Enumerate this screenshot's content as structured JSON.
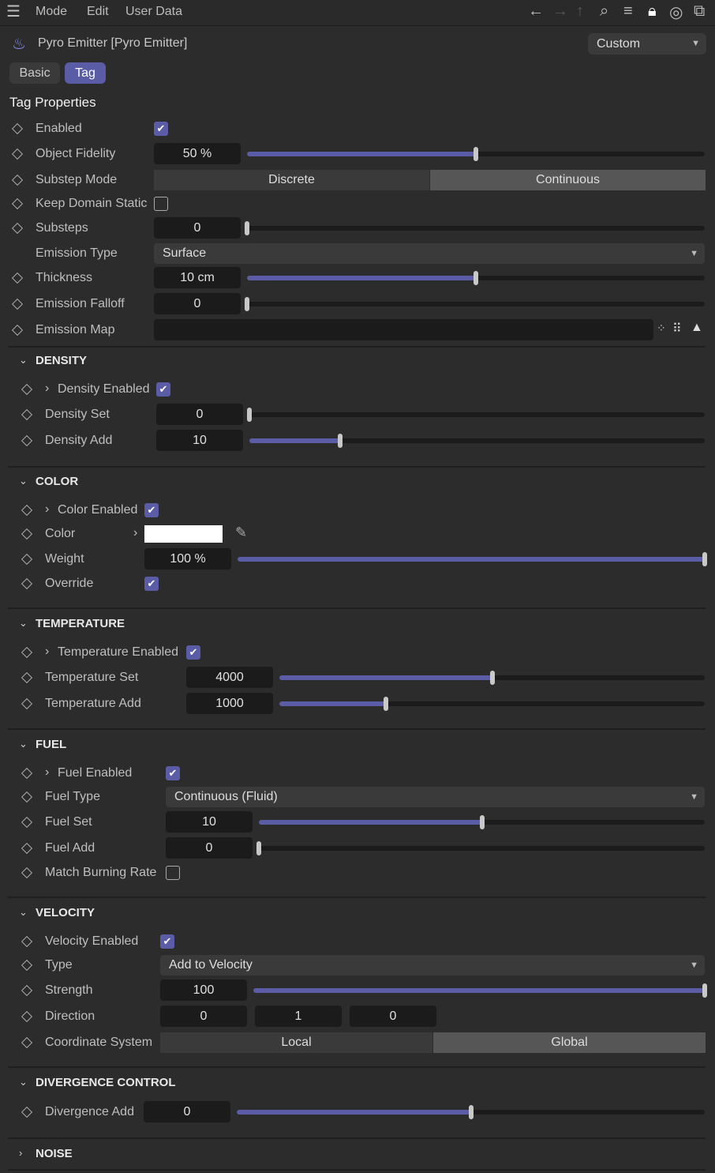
{
  "menu": {
    "items": [
      "Mode",
      "Edit",
      "User Data"
    ],
    "icons": [
      "arrow-left-icon",
      "arrow-right-icon",
      "arrow-up-icon",
      "search-icon",
      "filter-icon",
      "lock-icon",
      "target-icon",
      "new-window-icon"
    ]
  },
  "header": {
    "title": "Pyro Emitter [Pyro Emitter]",
    "preset": "Custom",
    "tabs": [
      {
        "label": "Basic",
        "active": false
      },
      {
        "label": "Tag",
        "active": true
      }
    ],
    "group_title": "Tag Properties"
  },
  "colors": {
    "accent": "#5a5ca6",
    "background": "#2c2c2c",
    "field": "#1b1b1b"
  },
  "sections": [
    {
      "title": "",
      "rows": [
        {
          "label": "Enabled",
          "type": "check",
          "checked": true
        },
        {
          "label": "Object Fidelity",
          "type": "num",
          "value": "50 %",
          "slider": 0.5
        },
        {
          "label": "Substep Mode",
          "type": "toggle",
          "options": [
            "Discrete",
            "Continuous"
          ],
          "selected": 1
        },
        {
          "label": "Keep Domain Static",
          "type": "check",
          "checked": false
        },
        {
          "label": "Substeps",
          "type": "num",
          "value": "0",
          "slider": 0
        },
        {
          "label": "Emission Type",
          "type": "dropdown",
          "value": "Surface",
          "nokey": true
        },
        {
          "label": "Thickness",
          "type": "num",
          "value": "10 cm",
          "slider": 0.5
        },
        {
          "label": "Emission Falloff",
          "type": "num",
          "value": "0",
          "slider": 0
        },
        {
          "label": "Emission Map",
          "type": "map",
          "value": ""
        }
      ]
    },
    {
      "title": "DENSITY",
      "expanded": true,
      "rows": [
        {
          "label": "Density Enabled",
          "type": "check",
          "checked": true,
          "expand": true
        },
        {
          "label": "Density Set",
          "type": "num",
          "value": "0",
          "slider": 0
        },
        {
          "label": "Density Add",
          "type": "num",
          "value": "10",
          "slider": 0.2
        }
      ]
    },
    {
      "title": "COLOR",
      "expanded": true,
      "rows": [
        {
          "label": "Color Enabled",
          "type": "check",
          "checked": true,
          "expand": true
        },
        {
          "label": "Color",
          "type": "color",
          "value": "#ffffff"
        },
        {
          "label": "Weight",
          "type": "num",
          "value": "100 %",
          "slider": 1
        },
        {
          "label": "Override",
          "type": "check",
          "checked": true
        }
      ]
    },
    {
      "title": "TEMPERATURE",
      "expanded": true,
      "rows": [
        {
          "label": "Temperature Enabled",
          "type": "check",
          "checked": true,
          "expand": true
        },
        {
          "label": "Temperature Set",
          "type": "num",
          "value": "4000",
          "slider": 0.5
        },
        {
          "label": "Temperature Add",
          "type": "num",
          "value": "1000",
          "slider": 0.25
        }
      ]
    },
    {
      "title": "FUEL",
      "expanded": true,
      "rows": [
        {
          "label": "Fuel Enabled",
          "type": "check",
          "checked": true,
          "expand": true
        },
        {
          "label": "Fuel Type",
          "type": "dropdown",
          "value": "Continuous (Fluid)"
        },
        {
          "label": "Fuel Set",
          "type": "num",
          "value": "10",
          "slider": 0.5
        },
        {
          "label": "Fuel Add",
          "type": "num",
          "value": "0",
          "slider": 0
        },
        {
          "label": "Match Burning Rate",
          "type": "check",
          "checked": false
        }
      ]
    },
    {
      "title": "VELOCITY",
      "expanded": true,
      "rows": [
        {
          "label": "Velocity Enabled",
          "type": "check",
          "checked": true
        },
        {
          "label": "Type",
          "type": "dropdown",
          "value": "Add to Velocity"
        },
        {
          "label": "Strength",
          "type": "num",
          "value": "100",
          "slider": 1
        },
        {
          "label": "Direction",
          "type": "triple",
          "values": [
            "0",
            "1",
            "0"
          ]
        },
        {
          "label": "Coordinate System",
          "type": "toggle",
          "options": [
            "Local",
            "Global"
          ],
          "selected": 1
        }
      ]
    },
    {
      "title": "DIVERGENCE CONTROL",
      "expanded": true,
      "rows": [
        {
          "label": "Divergence Add",
          "type": "num",
          "value": "0",
          "slider": 0.5
        }
      ]
    },
    {
      "title": "NOISE",
      "expanded": false,
      "rows": []
    }
  ]
}
